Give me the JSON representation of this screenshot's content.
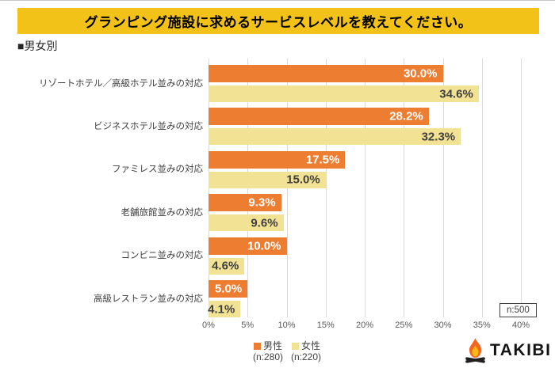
{
  "title": {
    "text": "グランピング施設に求めるサービスレベルを教えてください。",
    "bg_color": "#F3C218"
  },
  "section_label": "■男女別",
  "chart_data": {
    "type": "bar",
    "orientation": "horizontal",
    "title": "グランピング施設に求めるサービスレベルを教えてください。",
    "subtitle": "男女別",
    "categories": [
      "リゾートホテル／高級ホテル並みの対応",
      "ビジネスホテル並みの対応",
      "ファミレス並みの対応",
      "老舗旅館並みの対応",
      "コンビニ並みの対応",
      "高級レストラン並みの対応"
    ],
    "series": [
      {
        "name": "男性",
        "n_label": "(n:280)",
        "color": "#ED7D31",
        "values": [
          30.0,
          28.2,
          17.5,
          9.3,
          10.0,
          5.0
        ]
      },
      {
        "name": "女性",
        "n_label": "(n:220)",
        "color": "#F2E394",
        "values": [
          34.6,
          32.3,
          15.0,
          9.6,
          4.6,
          4.1
        ]
      }
    ],
    "x_ticks": [
      "0%",
      "5%",
      "10%",
      "15%",
      "20%",
      "25%",
      "30%",
      "35%",
      "40%"
    ],
    "xlim": [
      0,
      40
    ],
    "grid": true,
    "gridline_color": "#D9D9D9",
    "legend_position": "bottom",
    "value_label_format": "percent_1dp"
  },
  "annotation": {
    "sample_size": "n:500"
  },
  "logo": {
    "text": "TAKIBI",
    "icon": "campfire-icon",
    "flame_outer_color": "#F26522",
    "flame_inner_color": "#FDB913",
    "log_color": "#231F20"
  }
}
